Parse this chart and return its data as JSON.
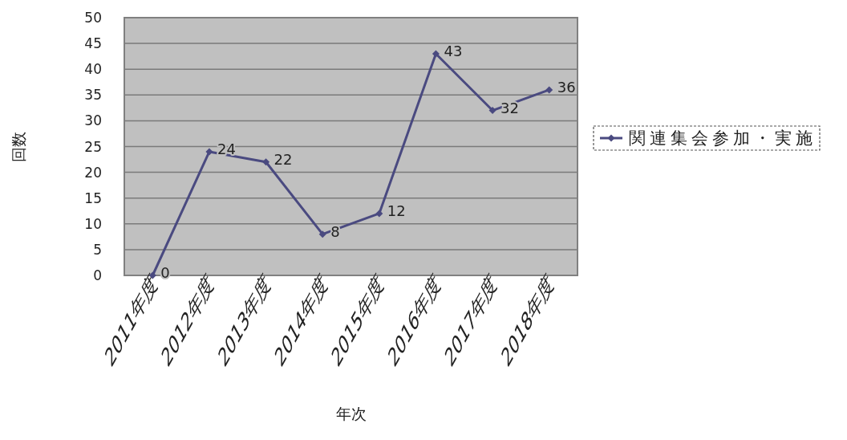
{
  "chart_data": {
    "type": "line",
    "xlabel": "年次",
    "ylabel": "回数",
    "categories": [
      "2011年度",
      "2012年度",
      "2013年度",
      "2014年度",
      "2015年度",
      "2016年度",
      "2017年度",
      "2018年度"
    ],
    "series": [
      {
        "name": "関連集会参加・実施",
        "color": "#4a4a80",
        "values": [
          0,
          24,
          22,
          8,
          12,
          43,
          32,
          36
        ]
      }
    ],
    "ylim": [
      0,
      50
    ],
    "yticks": [
      0,
      5,
      10,
      15,
      20,
      25,
      30,
      35,
      40,
      45,
      50
    ],
    "grid": "y",
    "legend": "right",
    "marker": "diamond",
    "line_style": "solid",
    "data_labels": true
  }
}
